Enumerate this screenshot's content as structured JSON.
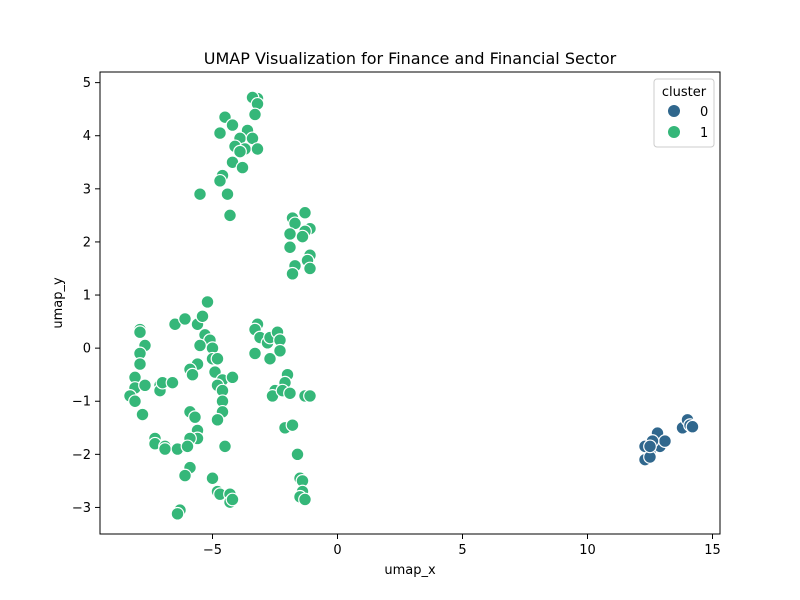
{
  "chart_data": {
    "type": "scatter",
    "title": "UMAP Visualization for Finance and Financial Sector",
    "xlabel": "umap_x",
    "ylabel": "umap_y",
    "xlim": [
      -9.5,
      15.3
    ],
    "ylim": [
      -3.5,
      5.2
    ],
    "xticks": [
      -5,
      0,
      5,
      10,
      15
    ],
    "yticks": [
      -3,
      -2,
      -1,
      0,
      1,
      2,
      3,
      4,
      5
    ],
    "grid": false,
    "legend": {
      "title": "cluster",
      "placement": "top-right"
    },
    "series": [
      {
        "name": "0",
        "color": "#30678d",
        "points": [
          [
            12.3,
            -2.1
          ],
          [
            12.5,
            -1.95
          ],
          [
            12.3,
            -1.85
          ],
          [
            12.7,
            -1.75
          ],
          [
            12.8,
            -1.6
          ],
          [
            12.9,
            -1.85
          ],
          [
            13.1,
            -1.75
          ],
          [
            13.8,
            -1.5
          ],
          [
            14.0,
            -1.35
          ],
          [
            14.1,
            -1.45
          ],
          [
            14.2,
            -1.48
          ],
          [
            12.6,
            -1.75
          ],
          [
            12.5,
            -2.05
          ],
          [
            12.5,
            -1.85
          ]
        ]
      },
      {
        "name": "1",
        "color": "#35b779",
        "points": [
          [
            -3.2,
            4.7
          ],
          [
            -3.4,
            4.72
          ],
          [
            -3.2,
            4.6
          ],
          [
            -3.3,
            4.4
          ],
          [
            -4.5,
            4.35
          ],
          [
            -4.7,
            4.05
          ],
          [
            -4.2,
            4.2
          ],
          [
            -3.6,
            4.1
          ],
          [
            -3.9,
            3.95
          ],
          [
            -3.4,
            3.95
          ],
          [
            -4.1,
            3.8
          ],
          [
            -3.7,
            3.75
          ],
          [
            -3.2,
            3.75
          ],
          [
            -3.9,
            3.7
          ],
          [
            -4.2,
            3.5
          ],
          [
            -3.8,
            3.4
          ],
          [
            -4.6,
            3.25
          ],
          [
            -4.7,
            3.15
          ],
          [
            -5.5,
            2.9
          ],
          [
            -4.4,
            2.9
          ],
          [
            -4.3,
            2.5
          ],
          [
            -1.8,
            2.45
          ],
          [
            -1.3,
            2.55
          ],
          [
            -1.7,
            2.35
          ],
          [
            -1.1,
            2.25
          ],
          [
            -1.3,
            2.2
          ],
          [
            -1.9,
            2.15
          ],
          [
            -1.4,
            2.1
          ],
          [
            -1.9,
            1.9
          ],
          [
            -1.1,
            1.75
          ],
          [
            -1.2,
            1.65
          ],
          [
            -1.7,
            1.55
          ],
          [
            -1.1,
            1.5
          ],
          [
            -1.8,
            1.4
          ],
          [
            -5.2,
            0.87
          ],
          [
            -7.9,
            0.35
          ],
          [
            -7.9,
            0.3
          ],
          [
            -7.7,
            0.05
          ],
          [
            -7.9,
            -0.1
          ],
          [
            -7.9,
            -0.3
          ],
          [
            -6.5,
            0.45
          ],
          [
            -6.1,
            0.55
          ],
          [
            -5.6,
            0.45
          ],
          [
            -5.4,
            0.6
          ],
          [
            -5.3,
            0.25
          ],
          [
            -5.1,
            0.15
          ],
          [
            -5.0,
            0.0
          ],
          [
            -5.5,
            0.05
          ],
          [
            -5.0,
            -0.2
          ],
          [
            -4.8,
            -0.2
          ],
          [
            -5.6,
            -0.3
          ],
          [
            -5.9,
            -0.4
          ],
          [
            -5.8,
            -0.5
          ],
          [
            -4.9,
            -0.45
          ],
          [
            -4.6,
            -0.6
          ],
          [
            -4.8,
            -0.7
          ],
          [
            -4.2,
            -0.55
          ],
          [
            -4.6,
            -0.8
          ],
          [
            -4.6,
            -1.0
          ],
          [
            -4.6,
            -1.2
          ],
          [
            -4.8,
            -1.35
          ],
          [
            -3.2,
            0.45
          ],
          [
            -3.3,
            0.35
          ],
          [
            -3.1,
            0.2
          ],
          [
            -2.8,
            0.1
          ],
          [
            -2.7,
            0.2
          ],
          [
            -2.4,
            0.3
          ],
          [
            -2.3,
            0.15
          ],
          [
            -2.3,
            -0.05
          ],
          [
            -3.3,
            -0.1
          ],
          [
            -2.7,
            -0.2
          ],
          [
            -2.0,
            -0.5
          ],
          [
            -2.1,
            -0.65
          ],
          [
            -2.5,
            -0.8
          ],
          [
            -2.6,
            -0.9
          ],
          [
            -2.2,
            -0.8
          ],
          [
            -1.9,
            -0.85
          ],
          [
            -1.3,
            -0.9
          ],
          [
            -1.1,
            -0.9
          ],
          [
            -8.1,
            -0.55
          ],
          [
            -8.1,
            -0.75
          ],
          [
            -8.3,
            -0.9
          ],
          [
            -8.1,
            -1.0
          ],
          [
            -7.7,
            -0.7
          ],
          [
            -7.1,
            -0.7
          ],
          [
            -7.1,
            -0.8
          ],
          [
            -7.0,
            -0.65
          ],
          [
            -6.6,
            -0.65
          ],
          [
            -7.8,
            -1.25
          ],
          [
            -7.3,
            -1.7
          ],
          [
            -7.3,
            -1.8
          ],
          [
            -6.9,
            -1.85
          ],
          [
            -6.9,
            -1.9
          ],
          [
            -6.4,
            -1.9
          ],
          [
            -5.9,
            -1.2
          ],
          [
            -5.7,
            -1.3
          ],
          [
            -5.6,
            -1.55
          ],
          [
            -5.6,
            -1.7
          ],
          [
            -5.9,
            -1.7
          ],
          [
            -6.0,
            -1.85
          ],
          [
            -5.9,
            -2.25
          ],
          [
            -6.1,
            -2.4
          ],
          [
            -4.5,
            -1.85
          ],
          [
            -2.1,
            -1.5
          ],
          [
            -1.8,
            -1.45
          ],
          [
            -1.6,
            -2.0
          ],
          [
            -1.5,
            -2.45
          ],
          [
            -1.4,
            -2.5
          ],
          [
            -1.4,
            -2.7
          ],
          [
            -1.5,
            -2.8
          ],
          [
            -1.3,
            -2.85
          ],
          [
            -5.0,
            -2.45
          ],
          [
            -4.8,
            -2.7
          ],
          [
            -4.7,
            -2.75
          ],
          [
            -4.3,
            -2.75
          ],
          [
            -4.3,
            -2.9
          ],
          [
            -4.2,
            -2.85
          ],
          [
            -6.3,
            -3.05
          ],
          [
            -6.4,
            -3.12
          ]
        ]
      }
    ]
  }
}
